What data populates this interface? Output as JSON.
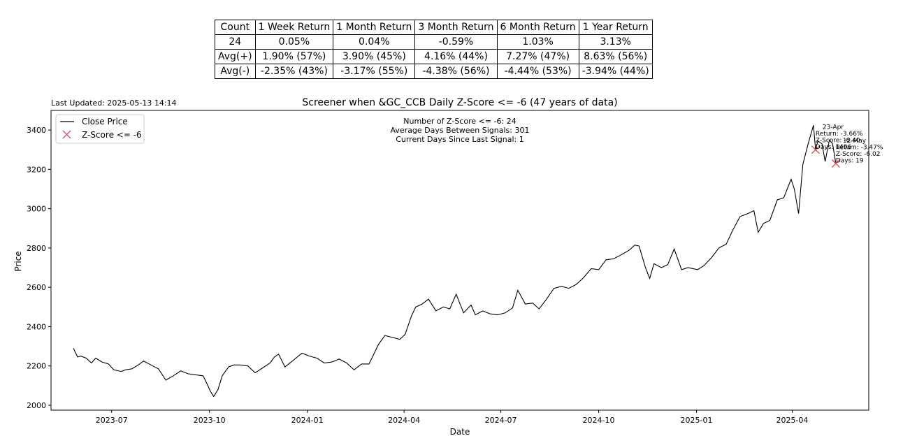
{
  "table": {
    "headers": [
      "Count",
      "1 Week Return",
      "1 Month Return",
      "3 Month Return",
      "6 Month Return",
      "1 Year Return"
    ],
    "rows": [
      [
        "24",
        "0.05%",
        "0.04%",
        "-0.59%",
        "1.03%",
        "3.13%"
      ],
      [
        "Avg(+)",
        "1.90% (57%)",
        "3.90% (45%)",
        "4.16% (44%)",
        "7.27% (47%)",
        "8.63% (56%)"
      ],
      [
        "Avg(-)",
        "-2.35% (43%)",
        "-3.17% (55%)",
        "-4.38% (56%)",
        "-4.44% (53%)",
        "-3.94% (44%)"
      ]
    ]
  },
  "last_updated": "Last Updated: 2025-05-13 14:14",
  "chart_data": {
    "type": "line",
    "title": "Screener when &GC_CCB Daily Z-Score <= -6 (47 years of data)",
    "xlabel": "Date",
    "ylabel": "Price",
    "xlim": [
      "2023-05-05",
      "2025-06-12"
    ],
    "ylim": [
      1975,
      3500
    ],
    "x_ticks": [
      "2023-07",
      "2023-10",
      "2024-01",
      "2024-04",
      "2024-07",
      "2024-10",
      "2025-01",
      "2025-04"
    ],
    "y_ticks": [
      2000,
      2200,
      2400,
      2600,
      2800,
      3000,
      3200,
      3400
    ],
    "legend": {
      "position": "top-left",
      "entries": [
        "Close Price",
        "Z-Score <= -6"
      ]
    },
    "info_text": [
      "Number of Z-Score <= -6: 24",
      "Average Days Between Signals: 301",
      "Current Days Since Last Signal: 1"
    ],
    "series": [
      {
        "name": "Close Price",
        "color": "#000000",
        "points": [
          [
            "2023-05-26",
            2290
          ],
          [
            "2023-05-30",
            2245
          ],
          [
            "2023-06-02",
            2250
          ],
          [
            "2023-06-07",
            2240
          ],
          [
            "2023-06-12",
            2215
          ],
          [
            "2023-06-16",
            2240
          ],
          [
            "2023-06-22",
            2220
          ],
          [
            "2023-06-28",
            2210
          ],
          [
            "2023-07-03",
            2180
          ],
          [
            "2023-07-10",
            2172
          ],
          [
            "2023-07-14",
            2180
          ],
          [
            "2023-07-20",
            2185
          ],
          [
            "2023-07-26",
            2205
          ],
          [
            "2023-07-31",
            2225
          ],
          [
            "2023-08-07",
            2205
          ],
          [
            "2023-08-14",
            2185
          ],
          [
            "2023-08-21",
            2128
          ],
          [
            "2023-08-28",
            2150
          ],
          [
            "2023-09-04",
            2175
          ],
          [
            "2023-09-11",
            2160
          ],
          [
            "2023-09-18",
            2155
          ],
          [
            "2023-09-25",
            2150
          ],
          [
            "2023-09-29",
            2105
          ],
          [
            "2023-10-02",
            2070
          ],
          [
            "2023-10-05",
            2045
          ],
          [
            "2023-10-09",
            2080
          ],
          [
            "2023-10-13",
            2150
          ],
          [
            "2023-10-19",
            2195
          ],
          [
            "2023-10-24",
            2205
          ],
          [
            "2023-10-30",
            2205
          ],
          [
            "2023-11-06",
            2200
          ],
          [
            "2023-11-13",
            2165
          ],
          [
            "2023-11-20",
            2190
          ],
          [
            "2023-11-27",
            2215
          ],
          [
            "2023-12-01",
            2245
          ],
          [
            "2023-12-05",
            2260
          ],
          [
            "2023-12-11",
            2195
          ],
          [
            "2023-12-18",
            2225
          ],
          [
            "2023-12-27",
            2265
          ],
          [
            "2024-01-03",
            2250
          ],
          [
            "2024-01-10",
            2240
          ],
          [
            "2024-01-17",
            2215
          ],
          [
            "2024-01-24",
            2220
          ],
          [
            "2024-01-31",
            2235
          ],
          [
            "2024-02-07",
            2215
          ],
          [
            "2024-02-14",
            2180
          ],
          [
            "2024-02-21",
            2210
          ],
          [
            "2024-02-28",
            2210
          ],
          [
            "2024-03-04",
            2265
          ],
          [
            "2024-03-08",
            2310
          ],
          [
            "2024-03-14",
            2355
          ],
          [
            "2024-03-21",
            2345
          ],
          [
            "2024-03-28",
            2335
          ],
          [
            "2024-04-02",
            2360
          ],
          [
            "2024-04-08",
            2455
          ],
          [
            "2024-04-12",
            2500
          ],
          [
            "2024-04-18",
            2515
          ],
          [
            "2024-04-24",
            2540
          ],
          [
            "2024-05-01",
            2480
          ],
          [
            "2024-05-08",
            2500
          ],
          [
            "2024-05-14",
            2490
          ],
          [
            "2024-05-20",
            2565
          ],
          [
            "2024-05-27",
            2470
          ],
          [
            "2024-06-03",
            2510
          ],
          [
            "2024-06-07",
            2460
          ],
          [
            "2024-06-14",
            2480
          ],
          [
            "2024-06-21",
            2465
          ],
          [
            "2024-06-28",
            2460
          ],
          [
            "2024-07-05",
            2470
          ],
          [
            "2024-07-12",
            2495
          ],
          [
            "2024-07-17",
            2585
          ],
          [
            "2024-07-24",
            2515
          ],
          [
            "2024-07-31",
            2520
          ],
          [
            "2024-08-06",
            2490
          ],
          [
            "2024-08-13",
            2540
          ],
          [
            "2024-08-20",
            2595
          ],
          [
            "2024-08-27",
            2605
          ],
          [
            "2024-09-03",
            2595
          ],
          [
            "2024-09-10",
            2615
          ],
          [
            "2024-09-17",
            2650
          ],
          [
            "2024-09-24",
            2695
          ],
          [
            "2024-10-01",
            2690
          ],
          [
            "2024-10-08",
            2740
          ],
          [
            "2024-10-15",
            2745
          ],
          [
            "2024-10-22",
            2765
          ],
          [
            "2024-10-30",
            2790
          ],
          [
            "2024-11-04",
            2815
          ],
          [
            "2024-11-08",
            2810
          ],
          [
            "2024-11-14",
            2700
          ],
          [
            "2024-11-18",
            2645
          ],
          [
            "2024-11-22",
            2720
          ],
          [
            "2024-11-29",
            2700
          ],
          [
            "2024-12-05",
            2715
          ],
          [
            "2024-12-11",
            2795
          ],
          [
            "2024-12-18",
            2690
          ],
          [
            "2024-12-24",
            2700
          ],
          [
            "2025-01-02",
            2690
          ],
          [
            "2025-01-08",
            2710
          ],
          [
            "2025-01-15",
            2750
          ],
          [
            "2025-01-22",
            2800
          ],
          [
            "2025-01-29",
            2820
          ],
          [
            "2025-02-04",
            2890
          ],
          [
            "2025-02-11",
            2960
          ],
          [
            "2025-02-18",
            2975
          ],
          [
            "2025-02-24",
            2990
          ],
          [
            "2025-02-28",
            2880
          ],
          [
            "2025-03-05",
            2925
          ],
          [
            "2025-03-11",
            2940
          ],
          [
            "2025-03-18",
            3045
          ],
          [
            "2025-03-24",
            3055
          ],
          [
            "2025-03-31",
            3150
          ],
          [
            "2025-04-03",
            3100
          ],
          [
            "2025-04-07",
            2975
          ],
          [
            "2025-04-11",
            3225
          ],
          [
            "2025-04-16",
            3330
          ],
          [
            "2025-04-21",
            3425
          ],
          [
            "2025-04-23",
            3300
          ],
          [
            "2025-04-25",
            3345
          ],
          [
            "2025-04-29",
            3330
          ],
          [
            "2025-05-02",
            3240
          ],
          [
            "2025-05-06",
            3350
          ],
          [
            "2025-05-09",
            3330
          ],
          [
            "2025-05-12",
            3230
          ]
        ]
      }
    ],
    "signals": [
      {
        "date": "2025-04-23",
        "price": 3300,
        "annotation": [
          "23-Apr",
          "Return: -3.66%",
          "Z-Score: -6.40",
          "Days: 1496"
        ]
      },
      {
        "date": "2025-05-12",
        "price": 3230,
        "annotation": [
          "12-May",
          "Return: -3.47%",
          "Z-Score: -6.02",
          "Days: 19"
        ]
      }
    ],
    "signal_color": "#e05050"
  }
}
